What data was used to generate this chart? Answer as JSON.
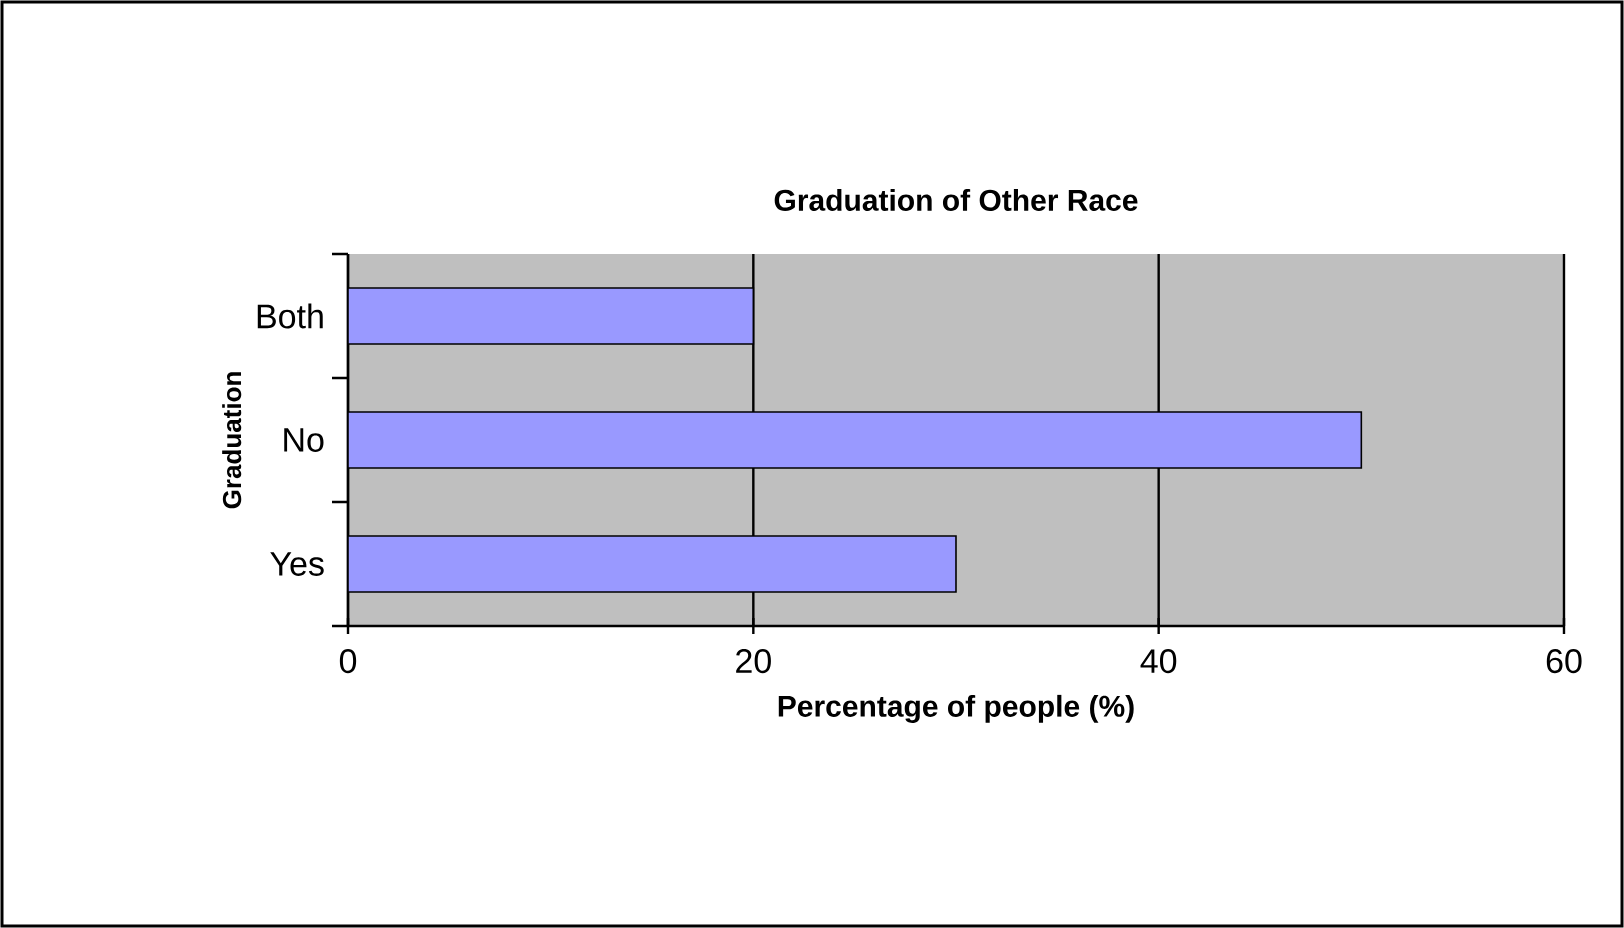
{
  "chart_data": {
    "type": "bar",
    "orientation": "horizontal",
    "title": "Graduation of Other Race",
    "xlabel": "Percentage of people (%)",
    "ylabel": "Graduation",
    "categories": [
      "Both",
      "No",
      "Yes"
    ],
    "values": [
      20,
      50,
      30
    ],
    "color": "#9999ff",
    "xlim": [
      0,
      60
    ],
    "xticks": [
      0,
      20,
      40,
      60
    ],
    "grid": "x"
  }
}
